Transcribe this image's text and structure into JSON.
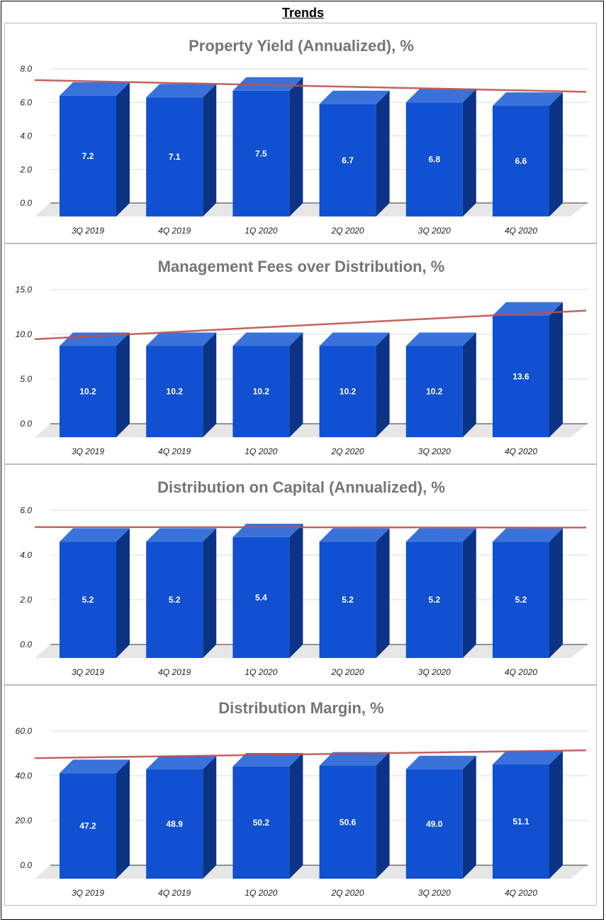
{
  "page": {
    "title": "Trends"
  },
  "colors": {
    "bar_front": "#1150d0",
    "bar_top": "#3a72dc",
    "bar_side": "#0b3487",
    "trend": "#c0504d",
    "grid": "#d9d9d9",
    "floor": "#e6e6e6"
  },
  "chart_data": [
    {
      "type": "bar",
      "title": "Property Yield (Annualized), %",
      "categories": [
        "3Q 2019",
        "4Q 2019",
        "1Q 2020",
        "2Q 2020",
        "3Q 2020",
        "4Q 2020"
      ],
      "values": [
        7.2,
        7.1,
        7.5,
        6.7,
        6.8,
        6.6
      ],
      "value_labels": [
        "7.2",
        "7.1",
        "7.5",
        "6.7",
        "6.8",
        "6.6"
      ],
      "ylim": [
        0,
        8
      ],
      "yticks": [
        "8.0",
        "6.0",
        "4.0",
        "2.0",
        "0.0"
      ],
      "trendline": [
        7.33,
        6.63
      ],
      "grid": true,
      "legend": "none"
    },
    {
      "type": "bar",
      "title": "Management Fees over Distribution, %",
      "categories": [
        "3Q 2019",
        "4Q 2019",
        "1Q 2020",
        "2Q 2020",
        "3Q 2020",
        "4Q 2020"
      ],
      "values": [
        10.2,
        10.2,
        10.2,
        10.2,
        10.2,
        13.6
      ],
      "value_labels": [
        "10.2",
        "10.2",
        "10.2",
        "10.2",
        "10.2",
        "13.6"
      ],
      "ylim": [
        0,
        15
      ],
      "yticks": [
        "15.0",
        "10.0",
        "5.0",
        "0.0"
      ],
      "trendline": [
        9.45,
        12.65
      ],
      "grid": true,
      "legend": "none"
    },
    {
      "type": "bar",
      "title": "Distribution on Capital (Annualized), %",
      "categories": [
        "3Q 2019",
        "4Q 2019",
        "1Q 2020",
        "2Q 2020",
        "3Q 2020",
        "4Q 2020"
      ],
      "values": [
        5.2,
        5.2,
        5.4,
        5.2,
        5.2,
        5.2
      ],
      "value_labels": [
        "5.2",
        "5.2",
        "5.4",
        "5.2",
        "5.2",
        "5.2"
      ],
      "ylim": [
        0,
        6
      ],
      "yticks": [
        "6.0",
        "4.0",
        "2.0",
        "0.0"
      ],
      "trendline": [
        5.25,
        5.23
      ],
      "grid": true,
      "legend": "none"
    },
    {
      "type": "bar",
      "title": "Distribution Margin, %",
      "categories": [
        "3Q 2019",
        "4Q 2019",
        "1Q 2020",
        "2Q 2020",
        "3Q 2020",
        "4Q 2020"
      ],
      "values": [
        47.2,
        48.9,
        50.2,
        50.6,
        49.0,
        51.1
      ],
      "value_labels": [
        "47.2",
        "48.9",
        "50.2",
        "50.6",
        "49.0",
        "51.1"
      ],
      "ylim": [
        0,
        60
      ],
      "yticks": [
        "60.0",
        "40.0",
        "20.0",
        "0.0"
      ],
      "trendline": [
        47.9,
        51.4
      ],
      "grid": true,
      "legend": "none"
    }
  ]
}
